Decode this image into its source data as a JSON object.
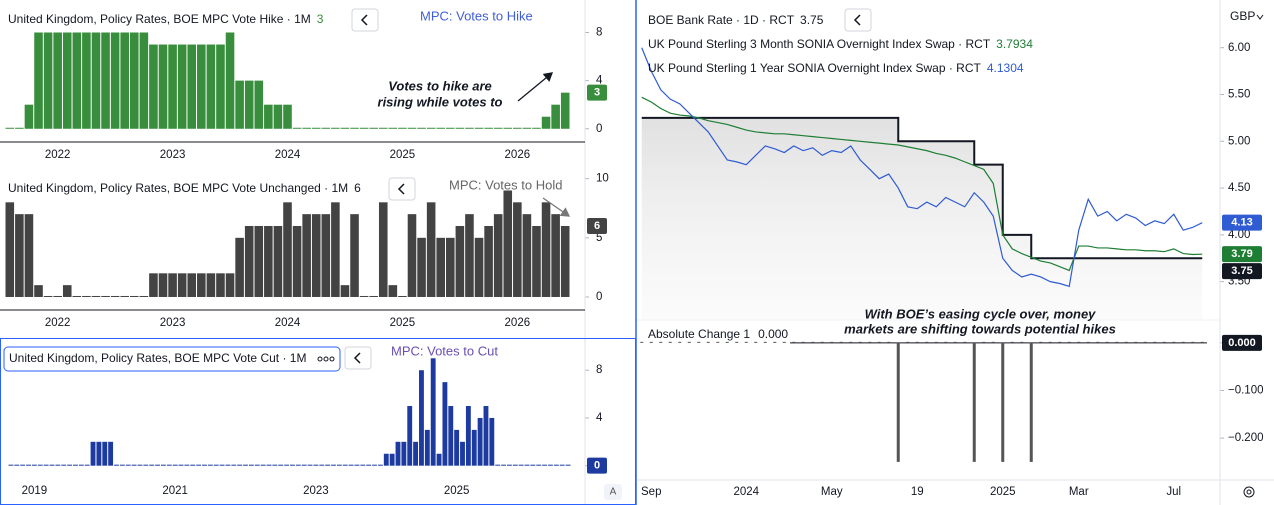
{
  "chart_data": [
    {
      "type": "bar",
      "title": "United Kingdom, Policy Rates, BOE MPC Vote Hike · 1M",
      "label": "MPC: Votes to Hike",
      "note": [
        "Votes to hike are",
        "rising while votes to"
      ],
      "color": "#388e3c",
      "categories": [
        null,
        null,
        null,
        null,
        null,
        "2022",
        null,
        null,
        null,
        null,
        null,
        null,
        null,
        null,
        null,
        null,
        null,
        "2023",
        null,
        null,
        null,
        null,
        null,
        null,
        null,
        null,
        null,
        null,
        null,
        "2024",
        null,
        null,
        null,
        null,
        null,
        null,
        null,
        null,
        null,
        null,
        null,
        "2025",
        null,
        null,
        null,
        null,
        null,
        null,
        null,
        null,
        null,
        null,
        null,
        "2026",
        null,
        null,
        null,
        null,
        null
      ],
      "values": [
        0,
        0,
        2,
        8,
        8,
        8,
        8,
        8,
        8,
        8,
        8,
        8,
        8,
        8,
        8,
        7,
        7,
        7,
        7,
        7,
        7,
        7,
        7,
        8,
        4,
        4,
        4,
        2,
        2,
        2,
        0,
        0,
        0,
        0,
        0,
        0,
        0,
        0,
        0,
        0,
        0,
        0,
        0,
        0,
        0,
        0,
        0,
        0,
        0,
        0,
        0,
        0,
        0,
        0,
        0,
        0,
        1,
        2,
        3
      ],
      "ylim": [
        -1.1,
        10.7
      ],
      "yticks": [
        0,
        4,
        8
      ]
    },
    {
      "type": "bar",
      "title": "United Kingdom, Policy Rates, BOE MPC Vote Unchanged · 1M",
      "label": "MPC: Votes to Hold",
      "color": "#434343",
      "categories": [
        null,
        null,
        null,
        null,
        null,
        "2022",
        null,
        null,
        null,
        null,
        null,
        null,
        null,
        null,
        null,
        null,
        null,
        "2023",
        null,
        null,
        null,
        null,
        null,
        null,
        null,
        null,
        null,
        null,
        null,
        "2024",
        null,
        null,
        null,
        null,
        null,
        null,
        null,
        null,
        null,
        null,
        null,
        "2025",
        null,
        null,
        null,
        null,
        null,
        null,
        null,
        null,
        null,
        null,
        null,
        "2026",
        null,
        null,
        null,
        null,
        null
      ],
      "values": [
        8,
        7,
        7,
        1,
        0,
        0,
        1,
        0,
        0,
        0,
        0,
        0,
        0,
        0,
        0,
        2,
        2,
        2,
        2,
        2,
        2,
        2,
        2,
        2,
        5,
        6,
        6,
        6,
        6,
        8,
        6,
        7,
        7,
        7,
        8,
        1,
        7,
        0,
        0,
        8,
        1,
        0,
        7,
        5,
        8,
        5,
        5,
        6,
        7,
        5,
        6,
        7,
        9,
        8,
        7,
        6,
        8,
        7,
        6
      ],
      "ylim": [
        -1.1,
        10.9
      ],
      "yticks": [
        0,
        5,
        10
      ]
    },
    {
      "type": "bar",
      "title": "United Kingdom, Policy Rates, BOE MPC Vote Cut · 1M",
      "label": "MPC: Votes to Cut",
      "color": "#1c3aa0",
      "categories": [
        null,
        null,
        null,
        null,
        "2019",
        null,
        null,
        null,
        null,
        null,
        null,
        null,
        null,
        null,
        null,
        null,
        null,
        null,
        null,
        null,
        null,
        null,
        null,
        null,
        null,
        null,
        null,
        null,
        "2021",
        null,
        null,
        null,
        null,
        null,
        null,
        null,
        null,
        null,
        null,
        null,
        null,
        null,
        null,
        null,
        null,
        null,
        null,
        null,
        null,
        null,
        null,
        null,
        "2023",
        null,
        null,
        null,
        null,
        null,
        null,
        null,
        null,
        null,
        null,
        null,
        null,
        null,
        null,
        null,
        null,
        null,
        null,
        null,
        null,
        null,
        null,
        null,
        "2025",
        null,
        null,
        null,
        null,
        null,
        null,
        null,
        null,
        null,
        null,
        null,
        null,
        null,
        null,
        null,
        null,
        null,
        null,
        null
      ],
      "values": [
        0,
        0,
        0,
        0,
        0,
        0,
        0,
        0,
        0,
        0,
        0,
        0,
        0,
        0,
        2,
        2,
        2,
        2,
        0,
        0,
        0,
        0,
        0,
        0,
        0,
        0,
        0,
        0,
        0,
        0,
        0,
        0,
        0,
        0,
        0,
        0,
        0,
        0,
        0,
        0,
        0,
        0,
        0,
        0,
        0,
        0,
        0,
        0,
        0,
        0,
        0,
        0,
        0,
        0,
        0,
        0,
        0,
        0,
        0,
        0,
        0,
        0,
        0,
        0,
        1,
        1,
        2,
        2,
        5,
        2,
        8,
        3,
        9,
        1,
        7,
        5,
        3,
        2,
        5,
        3,
        4,
        5,
        4,
        0,
        0,
        0,
        0,
        0,
        0,
        0,
        0,
        0,
        0,
        0,
        0,
        0
      ],
      "ylim": [
        -1.2,
        10.7
      ],
      "yticks": [
        0,
        4,
        8
      ],
      "corner_label": "A"
    },
    {
      "type": "line",
      "currency": "GBP",
      "note": [
        "With BOE’s easing cycle over, money",
        "markets are shifting towards potential hikes"
      ],
      "categories": [
        null,
        "Sep",
        null,
        null,
        null,
        null,
        null,
        null,
        null,
        null,
        null,
        "2024",
        null,
        null,
        null,
        null,
        null,
        null,
        null,
        null,
        "May",
        null,
        null,
        null,
        null,
        null,
        null,
        null,
        null,
        "19",
        null,
        null,
        null,
        null,
        null,
        null,
        null,
        null,
        "2025",
        null,
        null,
        null,
        null,
        null,
        null,
        null,
        "Mar",
        null,
        null,
        null,
        null,
        null,
        null,
        null,
        null,
        null,
        "Jul",
        null,
        null,
        null
      ],
      "series": [
        {
          "name": "BOE Bank Rate · 1D · RCT",
          "color": "#131722",
          "step": true,
          "area": true,
          "values": [
            5.25,
            5.25,
            5.25,
            5.25,
            5.25,
            5.25,
            5.25,
            5.25,
            5.25,
            5.25,
            5.25,
            5.25,
            5.25,
            5.25,
            5.25,
            5.25,
            5.25,
            5.25,
            5.25,
            5.25,
            5.25,
            5.25,
            5.25,
            5.25,
            5.25,
            5.25,
            5.25,
            5,
            5,
            5,
            5,
            5,
            5,
            5,
            5,
            4.75,
            4.75,
            4.75,
            4,
            4,
            4,
            3.75,
            3.75,
            3.75,
            3.75,
            3.75,
            3.75,
            3.75,
            3.75,
            3.75,
            3.75,
            3.75,
            3.75,
            3.75,
            3.75,
            3.75,
            3.75,
            3.75,
            3.75,
            3.75
          ]
        },
        {
          "name": "UK Pound Sterling 3 Month SONIA Overnight Index Swap · RCT",
          "color": "#1e7e34",
          "last_value_label": "3.79",
          "values": [
            5.47,
            5.42,
            5.35,
            5.3,
            5.28,
            5.27,
            5.25,
            5.22,
            5.2,
            5.18,
            5.15,
            5.12,
            5.1,
            5.09,
            5.08,
            5.08,
            5.07,
            5.06,
            5.05,
            5.04,
            5.03,
            5.02,
            5.01,
            5,
            4.99,
            4.98,
            4.97,
            4.96,
            4.94,
            4.92,
            4.9,
            4.87,
            4.85,
            4.82,
            4.78,
            4.74,
            4.7,
            4.55,
            4,
            3.85,
            3.8,
            3.76,
            3.72,
            3.7,
            3.66,
            3.62,
            3.88,
            3.88,
            3.86,
            3.86,
            3.85,
            3.84,
            3.84,
            3.83,
            3.83,
            3.82,
            3.85,
            3.8,
            3.79,
            3.7934
          ]
        },
        {
          "name": "UK Pound Sterling 1 Year SONIA Overnight Index Swap · RCT",
          "color": "#2f5bd3",
          "last_value_label": "4.13",
          "values": [
            6,
            5.75,
            5.55,
            5.45,
            5.4,
            5.3,
            5.2,
            5.1,
            4.95,
            4.8,
            4.78,
            4.75,
            4.85,
            4.95,
            4.92,
            4.88,
            4.95,
            4.9,
            4.93,
            4.85,
            4.9,
            4.88,
            4.95,
            4.8,
            4.7,
            4.6,
            4.65,
            4.5,
            4.3,
            4.28,
            4.35,
            4.3,
            4.4,
            4.35,
            4.3,
            4.45,
            4.35,
            4.2,
            3.75,
            3.62,
            3.55,
            3.58,
            3.55,
            3.5,
            3.48,
            3.45,
            4.05,
            4.38,
            4.2,
            4.25,
            4.15,
            4.22,
            4.18,
            4.1,
            4.15,
            4.12,
            4.22,
            4.05,
            4.08,
            4.1304
          ]
        }
      ],
      "ylim": [
        3.09,
        6.51
      ],
      "yticks": [
        {
          "value": 3.5,
          "label": "3.50"
        },
        {
          "value": 4,
          "label": "4.00"
        },
        {
          "value": 4.5,
          "label": "4.50"
        },
        {
          "value": 5,
          "label": "5.00"
        },
        {
          "value": 5.5,
          "label": "5.50"
        },
        {
          "value": 6,
          "label": "6.00"
        }
      ]
    },
    {
      "type": "bar",
      "title": "Absolute Change 1",
      "color": "#555555",
      "last_value_label": "0.000",
      "values": [
        0,
        0,
        0,
        0,
        0,
        0,
        0,
        0,
        0,
        0,
        0,
        0,
        0,
        0,
        0,
        0,
        0,
        0,
        0,
        0,
        0,
        0,
        0,
        0,
        0,
        0,
        0,
        -0.25,
        0,
        0,
        0,
        0,
        0,
        0,
        0,
        -0.25,
        0,
        0,
        -0.25,
        0,
        0,
        -0.25,
        0,
        0,
        0,
        0,
        0,
        0,
        0,
        0,
        0,
        0,
        0,
        0,
        0,
        0,
        0,
        0,
        0,
        0
      ],
      "ylim": [
        -0.288,
        0.048
      ],
      "yticks": [
        {
          "value": 0,
          "label": "0.000"
        },
        {
          "value": -0.1,
          "label": "−0.100"
        },
        {
          "value": -0.2,
          "label": "−0.200"
        }
      ]
    }
  ]
}
